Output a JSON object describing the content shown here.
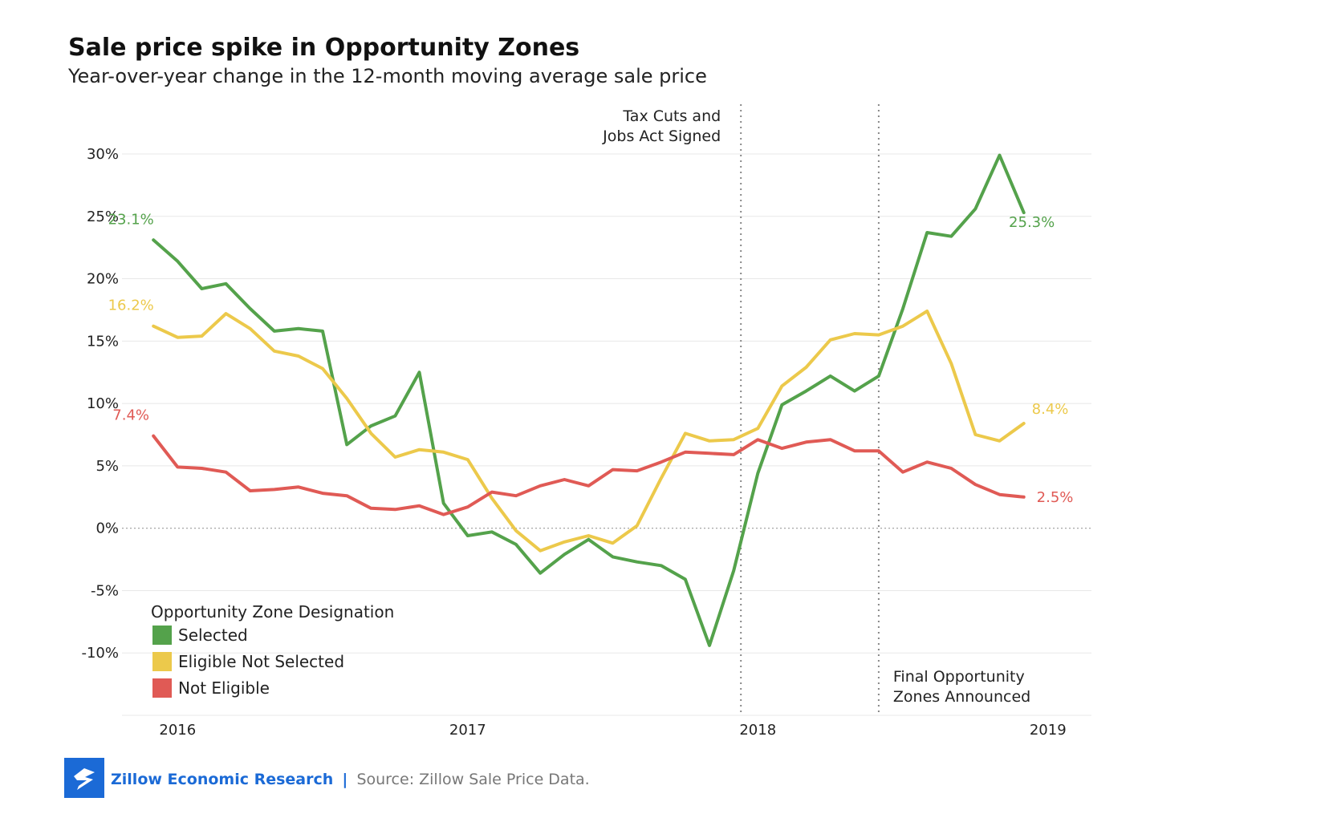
{
  "chart_data": {
    "type": "line",
    "title": "Sale price spike in Opportunity Zones",
    "subtitle": "Year-over-year change in the 12-month moving average sale price",
    "ylim": [
      -15,
      30
    ],
    "y_ticks": [
      30,
      25,
      20,
      15,
      10,
      5,
      0,
      -5,
      -10
    ],
    "y_tick_labels": [
      "30%",
      "25%",
      "20%",
      "15%",
      "10%",
      "5%",
      "0%",
      "-5%",
      "-10%"
    ],
    "x_tick_labels": [
      "2016",
      "2017",
      "2018",
      "2019"
    ],
    "x_tick_positions": [
      1.0,
      13.0,
      25.0,
      37.0
    ],
    "x_range": [
      -1.3,
      38.8
    ],
    "grid": true,
    "legend": {
      "title": "Opportunity Zone Designation",
      "placement": "bottom-left"
    },
    "x": [
      0,
      1,
      2,
      3,
      4,
      5,
      6,
      7,
      8,
      9,
      10,
      11,
      12,
      13,
      14,
      15,
      16,
      17,
      18,
      19,
      20,
      21,
      22,
      23,
      24,
      25,
      26,
      27,
      28,
      29,
      30,
      31,
      32,
      33,
      34,
      35,
      36
    ],
    "series": [
      {
        "name": "Selected",
        "color": "#54a24b",
        "values": [
          23.1,
          21.4,
          19.2,
          19.6,
          17.6,
          15.8,
          16.0,
          15.8,
          6.7,
          8.2,
          9.0,
          12.5,
          2.0,
          -0.6,
          -0.3,
          -1.3,
          -3.6,
          -2.1,
          -0.9,
          -2.3,
          -2.7,
          -3.0,
          -4.1,
          -9.4,
          -3.4,
          4.4,
          9.9,
          11.0,
          12.2,
          11.0,
          12.2,
          17.6,
          23.7,
          23.4,
          25.6,
          29.9,
          25.3
        ],
        "end_label": "25.3%",
        "start_label": "23.1%"
      },
      {
        "name": "Eligible Not Selected",
        "color": "#ecc94b",
        "values": [
          16.2,
          15.3,
          15.4,
          17.2,
          16.0,
          14.2,
          13.8,
          12.8,
          10.4,
          7.6,
          5.7,
          6.3,
          6.1,
          5.5,
          2.4,
          -0.2,
          -1.8,
          -1.1,
          -0.6,
          -1.2,
          0.2,
          4.0,
          7.6,
          7.0,
          7.1,
          8.0,
          11.4,
          12.9,
          15.1,
          15.6,
          15.5,
          16.2,
          17.4,
          13.2,
          7.5,
          7.0,
          8.4
        ],
        "end_label": "8.4%",
        "start_label": "16.2%"
      },
      {
        "name": "Not Eligible",
        "color": "#e05a55",
        "values": [
          7.4,
          4.9,
          4.8,
          4.5,
          3.0,
          3.1,
          3.3,
          2.8,
          2.6,
          1.6,
          1.5,
          1.8,
          1.1,
          1.7,
          2.9,
          2.6,
          3.4,
          3.9,
          3.4,
          4.7,
          4.6,
          5.3,
          6.1,
          6.0,
          5.9,
          7.1,
          6.4,
          6.9,
          7.1,
          6.2,
          6.2,
          4.5,
          5.3,
          4.8,
          3.5,
          2.7,
          2.5
        ],
        "end_label": "2.5%",
        "start_label": "7.4%"
      }
    ],
    "annotations": [
      {
        "lines": [
          "Tax Cuts and",
          "Jobs Act Signed"
        ],
        "x": 24.3
      },
      {
        "lines": [
          "Final Opportunity",
          "Zones Announced"
        ],
        "x": 30.0
      }
    ]
  },
  "footer": {
    "brand": "Zillow Economic Research",
    "separator": "|",
    "source": "Source: Zillow Sale Price Data.",
    "logo_icon": "zillow-logo-icon",
    "brand_color": "#1b6ad6"
  }
}
